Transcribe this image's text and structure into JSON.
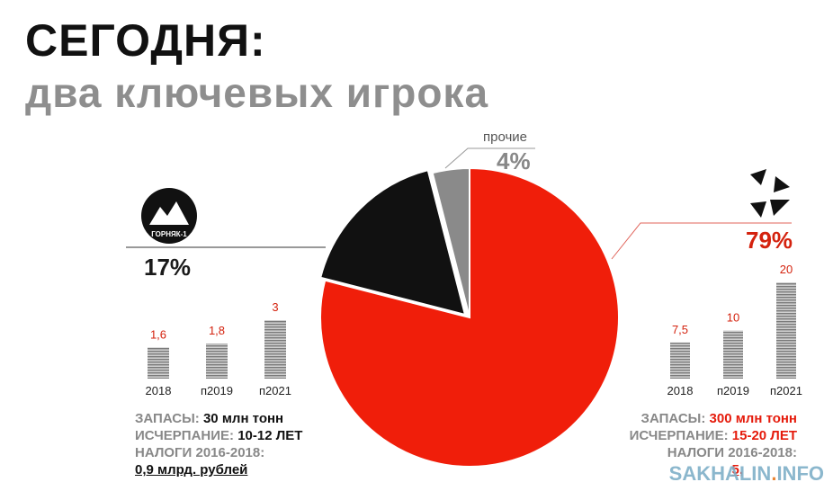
{
  "slide": {
    "title": "СЕГОДНЯ:",
    "subtitle": "два ключевых игрока",
    "watermark_main": "SAKHALIN",
    "watermark_dot": ".",
    "watermark_tail": "INFO"
  },
  "left_company": {
    "logo_text": "ГОРНЯК-1",
    "share_label": "17%",
    "info": {
      "reserves_key": "ЗАПАСЫ:",
      "reserves_value": "30 млн тонн",
      "depletion_key": "ИСЧЕРПАНИЕ:",
      "depletion_value": "10-12 ЛЕТ",
      "taxes_key": "НАЛОГИ 2016-2018:",
      "taxes_value": "0,9 млрд. рублей"
    }
  },
  "right_company": {
    "share_label": "79%",
    "info": {
      "reserves_key": "ЗАПАСЫ:",
      "reserves_value": "300 млн тонн",
      "depletion_key": "ИСЧЕРПАНИЕ:",
      "depletion_value": "15-20 ЛЕТ",
      "taxes_key": "НАЛОГИ 2016-2018:",
      "taxes_value": "5,"
    }
  },
  "others": {
    "label": "прочие",
    "share_label": "4%"
  },
  "colors": {
    "red": "#f01e0a",
    "black": "#111111",
    "gray": "#8a8a8a",
    "value_red": "#d4220e"
  },
  "chart_data": [
    {
      "type": "pie",
      "slices": [
        {
          "name": "прочие",
          "value": 4,
          "label": "4%"
        },
        {
          "name": "",
          "value": 79,
          "label": "79%"
        },
        {
          "name": "ГОРНЯК-1",
          "value": 17,
          "label": "17%"
        }
      ]
    },
    {
      "type": "bar",
      "categories": [
        "2018",
        "п2019",
        "п2021"
      ],
      "values": [
        1.6,
        1.8,
        3
      ],
      "value_labels": [
        "1,6",
        "1,8",
        "3"
      ]
    },
    {
      "type": "bar",
      "categories": [
        "2018",
        "п2019",
        "п2021"
      ],
      "values": [
        7.5,
        10,
        20
      ],
      "value_labels": [
        "7,5",
        "10",
        "20"
      ]
    }
  ]
}
